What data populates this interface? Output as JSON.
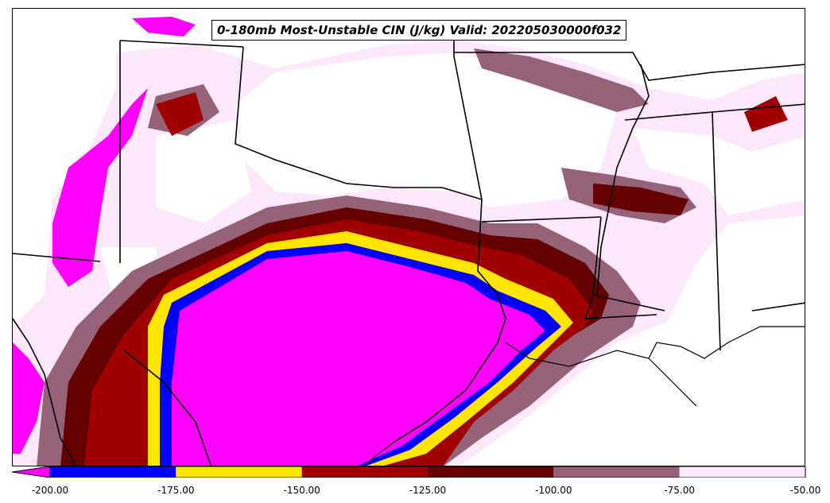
{
  "title": "0-180mb Most-Unstable CIN (J/kg) Valid: 202205030000f032",
  "colorbar": {
    "bins": [
      {
        "from": -200,
        "to": -175,
        "color": "#0000ff"
      },
      {
        "from": -175,
        "to": -150,
        "color": "#ffe600"
      },
      {
        "from": -150,
        "to": -125,
        "color": "#a00000"
      },
      {
        "from": -125,
        "to": -100,
        "color": "#640000"
      },
      {
        "from": -100,
        "to": -75,
        "color": "#956277"
      },
      {
        "from": -75,
        "to": -50,
        "color": "#fde7fb"
      }
    ],
    "extend_min_color": "#ff00ff",
    "tick_labels": [
      "-200.00",
      "-175.00",
      "-150.00",
      "-125.00",
      "-100.00",
      "-75.00",
      "-50.00"
    ]
  },
  "colors": {
    "below_min": "#ff00ff",
    "boundary": "#000000",
    "background": "#ffffff"
  }
}
